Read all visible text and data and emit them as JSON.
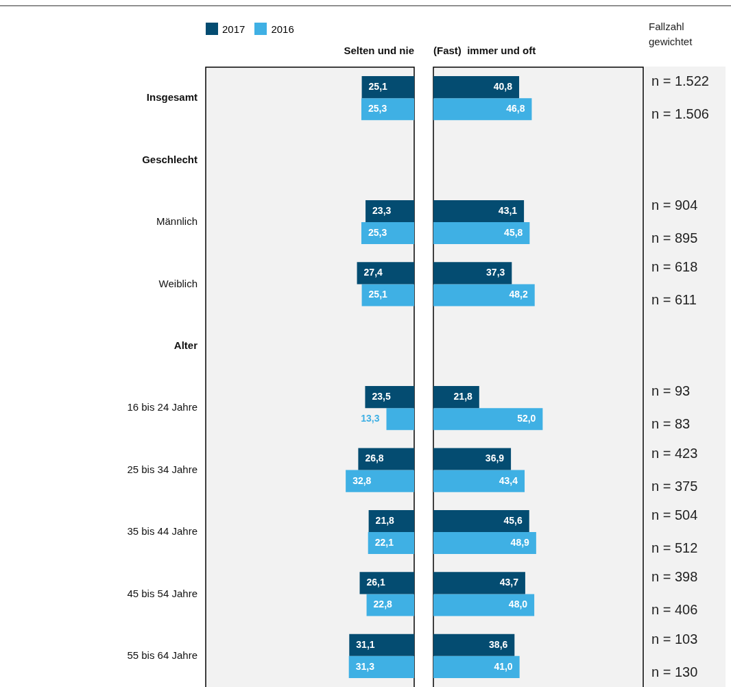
{
  "chart_data": [
    {
      "type": "bar",
      "orientation": "horizontal",
      "title": "Selten und nie",
      "categories": [
        "Insgesamt",
        "Geschlecht",
        "Männlich",
        "Weiblich",
        "Alter",
        "16 bis 24 Jahre",
        "25 bis 34 Jahre",
        "35 bis 44 Jahre",
        "45 bis 54 Jahre",
        "55 bis 64 Jahre"
      ],
      "series": [
        {
          "name": "2017",
          "color": "#044c71",
          "values": [
            25.1,
            null,
            23.3,
            27.4,
            null,
            23.5,
            26.8,
            21.8,
            26.1,
            31.1
          ],
          "value_labels": [
            "25,1",
            null,
            "23,3",
            "27,4",
            null,
            "23,5",
            "26,8",
            "21,8",
            "26,1",
            "31,1"
          ]
        },
        {
          "name": "2016",
          "color": "#3fb0e4",
          "values": [
            25.3,
            null,
            25.3,
            25.1,
            null,
            13.3,
            32.8,
            22.1,
            22.8,
            31.3
          ],
          "value_labels": [
            "25,3",
            null,
            "25,3",
            "25,1",
            null,
            "13,3",
            "32,8",
            "22,1",
            "22,8",
            "31,3"
          ]
        }
      ],
      "legend": "top left",
      "tick_labels": "y"
    },
    {
      "type": "bar",
      "orientation": "horizontal",
      "title": "(Fast)  immer und oft",
      "categories": [
        null,
        null,
        null,
        null,
        null,
        null,
        null,
        null,
        null,
        null
      ],
      "series": [
        {
          "color": "#044c71",
          "values": [
            40.8,
            null,
            43.1,
            37.3,
            null,
            21.8,
            36.9,
            45.6,
            43.7,
            38.6
          ],
          "value_labels": [
            "40,8",
            null,
            "43,1",
            "37,3",
            null,
            "21,8",
            "36,9",
            "45,6",
            "43,7",
            "38,6"
          ]
        },
        {
          "color": "#3fb0e4",
          "values": [
            46.8,
            null,
            45.8,
            48.2,
            null,
            52.0,
            43.4,
            48.9,
            48.0,
            41.0
          ],
          "value_labels": [
            "46,8",
            null,
            "45,8",
            "48,2",
            null,
            "52,0",
            "43,4",
            "48,9",
            "48,0",
            "41,0"
          ]
        }
      ],
      "tick_labels": false
    },
    {
      "type": "other",
      "title": "Fallzahl gewichtet",
      "annotations": [
        "n = 1.522",
        "n = 1.506",
        "n = 904",
        "n = 895",
        "n = 618",
        "n = 611",
        "n = 93",
        "n = 83",
        "n = 423",
        "n = 375",
        "n = 504",
        "n = 512",
        "n = 398",
        "n = 406",
        "n = 103",
        "n = 130"
      ]
    }
  ]
}
